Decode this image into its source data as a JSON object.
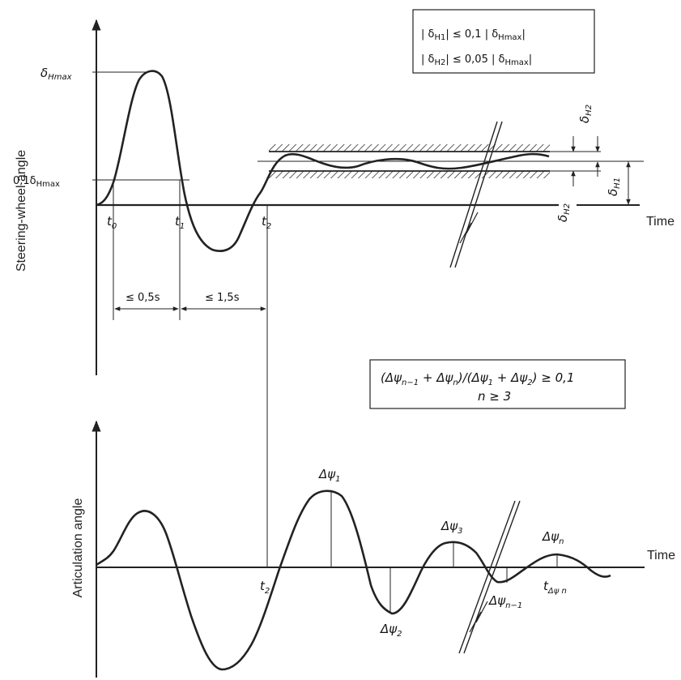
{
  "top_chart": {
    "y_axis_title": "Steering-wheel angle",
    "x_axis_title": "Time",
    "delta_hmax": "δ",
    "delta_hmax_sub": "Hmax",
    "ten_pct_prefix": "0,1δ",
    "ten_pct_sub": "Hmax",
    "t0": "t",
    "t0_sub": "0",
    "t1": "t",
    "t1_sub": "1",
    "t2": "t",
    "t2_sub": "2",
    "dim_1": "≤ 0,5s",
    "dim_2": "≤ 1,5s",
    "delta_h1": "δ",
    "delta_h1_sub": "H1",
    "delta_h2": "δ",
    "delta_h2_sub": "H2",
    "box_line1_a": "| δ",
    "box_line1_sub": "H1",
    "box_line1_b": "|  ≤ 0,1 | δ",
    "box_line1_sub2": "Hmax",
    "box_line1_c": "|",
    "box_line2_a": "| δ",
    "box_line2_sub": "H2",
    "box_line2_b": "|  ≤ 0,05 | δ",
    "box_line2_sub2": "Hmax",
    "box_line2_c": "|"
  },
  "bottom_chart": {
    "y_axis_title": "Articulation angle",
    "x_axis_title": "Time",
    "t2": "t",
    "t2_sub": "2",
    "dpsi": "Δψ",
    "dpsi1_sub": "1",
    "dpsi2_sub": "2",
    "dpsi3_sub": "3",
    "dpsin_sub": "n",
    "dpsin1_sub": "n−1",
    "t_dpsin": "t",
    "t_dpsin_sub": "Δψ n",
    "box_line1": "(Δψ",
    "box_line1_s1": "n−1",
    "box_line1_m1": " + Δψ",
    "box_line1_s2": "n",
    "box_line1_m2": ")/(Δψ",
    "box_line1_s3": "1",
    "box_line1_m3": " + Δψ",
    "box_line1_s4": "2",
    "box_line1_end": ") ≥ 0,1",
    "box_line2": "n ≥ 3"
  }
}
